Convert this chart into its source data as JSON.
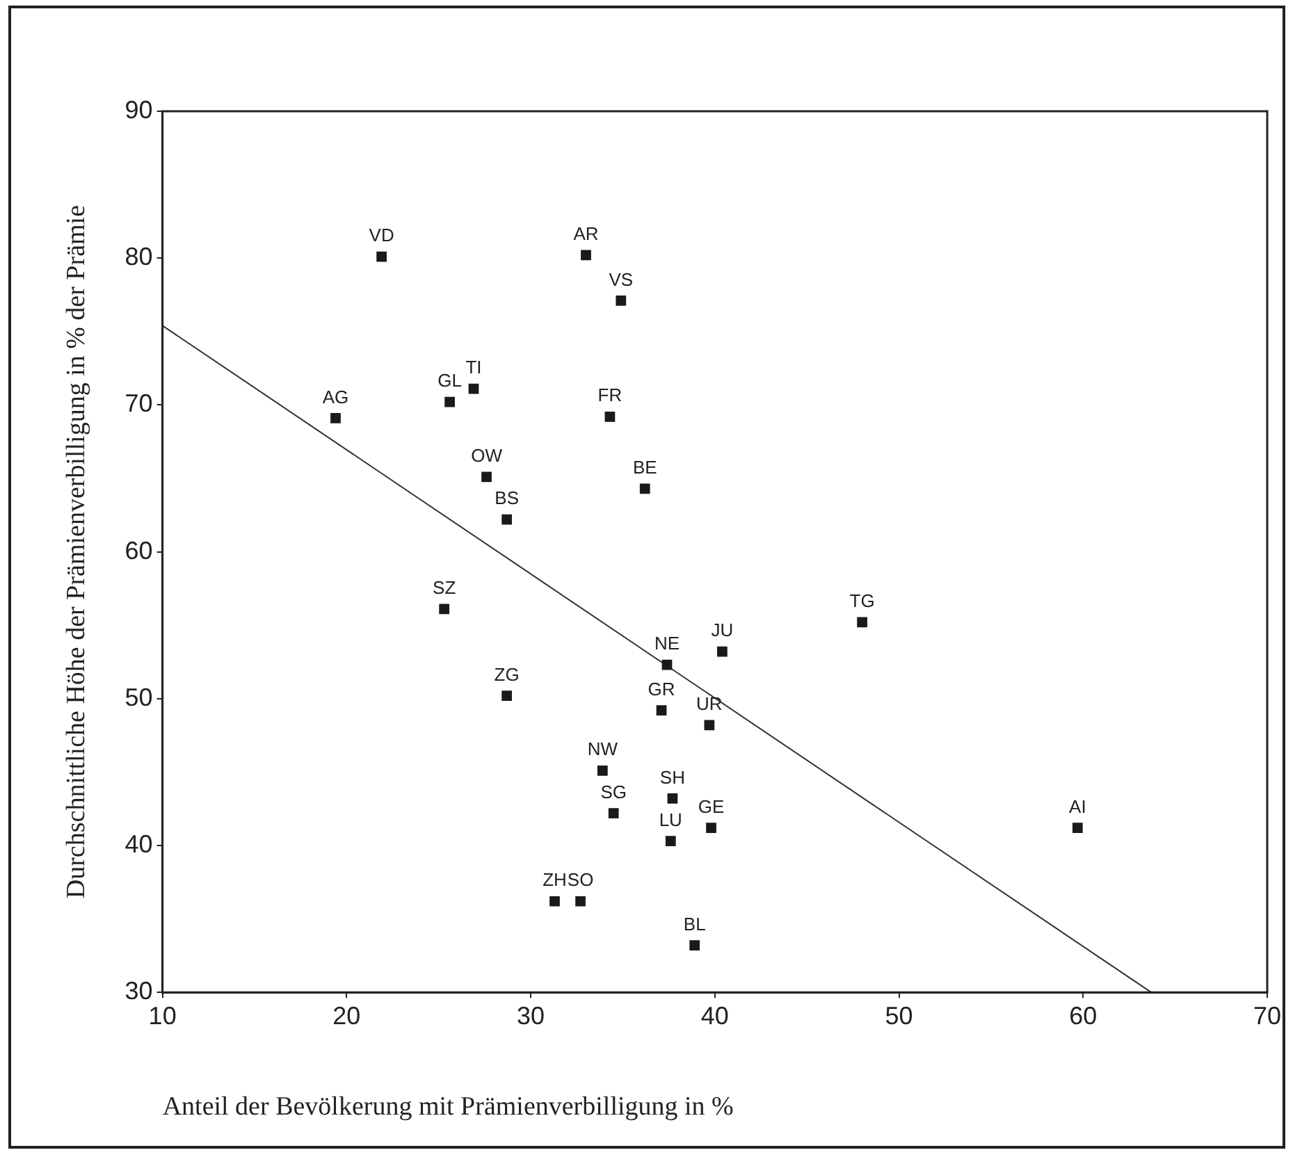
{
  "chart_data": {
    "type": "scatter",
    "xlabel": "Anteil der Bevölkerung mit Prämienverbilligung in %",
    "ylabel": "Durchschnittliche Höhe der Prämienverbilligung in % der Prämie",
    "x": [
      21.9,
      33.0,
      34.9,
      26.9,
      25.6,
      19.4,
      34.3,
      27.6,
      28.7,
      36.2,
      25.3,
      28.7,
      37.4,
      37.1,
      39.7,
      33.9,
      34.5,
      37.7,
      37.6,
      39.8,
      31.3,
      32.7,
      38.9,
      40.4,
      48.0,
      59.7
    ],
    "series": [
      {
        "color": "#1a1a1a",
        "marker": "square",
        "values": [
          80.1,
          80.2,
          77.1,
          71.1,
          70.2,
          69.1,
          69.2,
          65.1,
          62.2,
          64.3,
          56.1,
          50.2,
          52.3,
          49.2,
          48.2,
          45.1,
          42.2,
          43.2,
          40.3,
          41.2,
          36.2,
          36.2,
          33.2,
          53.2,
          55.2,
          41.2
        ]
      },
      {
        "type": "line",
        "marker": "none",
        "color": "#333333",
        "x": [
          10,
          63.7
        ],
        "values": [
          75.4,
          30
        ]
      }
    ],
    "annotations": [
      {
        "text": "VD",
        "x": 21.9,
        "y": 80.1
      },
      {
        "text": "AR",
        "x": 33.0,
        "y": 80.2
      },
      {
        "text": "VS",
        "x": 34.9,
        "y": 77.1
      },
      {
        "text": "TI",
        "x": 26.9,
        "y": 71.1
      },
      {
        "text": "GL",
        "x": 25.6,
        "y": 70.2
      },
      {
        "text": "AG",
        "x": 19.4,
        "y": 69.1
      },
      {
        "text": "FR",
        "x": 34.3,
        "y": 69.2
      },
      {
        "text": "OW",
        "x": 27.6,
        "y": 65.1
      },
      {
        "text": "BS",
        "x": 28.7,
        "y": 62.2
      },
      {
        "text": "BE",
        "x": 36.2,
        "y": 64.3
      },
      {
        "text": "SZ",
        "x": 25.3,
        "y": 56.1
      },
      {
        "text": "ZG",
        "x": 28.7,
        "y": 50.2
      },
      {
        "text": "NE",
        "x": 37.4,
        "y": 52.3
      },
      {
        "text": "GR",
        "x": 37.1,
        "y": 49.2
      },
      {
        "text": "UR",
        "x": 39.7,
        "y": 48.2
      },
      {
        "text": "NW",
        "x": 33.9,
        "y": 45.1
      },
      {
        "text": "SG",
        "x": 34.5,
        "y": 42.2
      },
      {
        "text": "SH",
        "x": 37.7,
        "y": 43.2
      },
      {
        "text": "LU",
        "x": 37.6,
        "y": 40.3
      },
      {
        "text": "GE",
        "x": 39.8,
        "y": 41.2
      },
      {
        "text": "ZH",
        "x": 31.3,
        "y": 36.2
      },
      {
        "text": "SO",
        "x": 32.7,
        "y": 36.2
      },
      {
        "text": "BL",
        "x": 38.9,
        "y": 33.2
      },
      {
        "text": "JU",
        "x": 40.4,
        "y": 53.2
      },
      {
        "text": "TG",
        "x": 48.0,
        "y": 55.2
      },
      {
        "text": "AI",
        "x": 59.7,
        "y": 41.2
      }
    ],
    "xlim": [
      10,
      70
    ],
    "xticks": [
      10,
      20,
      30,
      40,
      50,
      60,
      70
    ],
    "ylim": [
      30,
      90
    ],
    "yticks": [
      30,
      40,
      50,
      60,
      70,
      80,
      90
    ],
    "grid": false,
    "legend": false
  }
}
